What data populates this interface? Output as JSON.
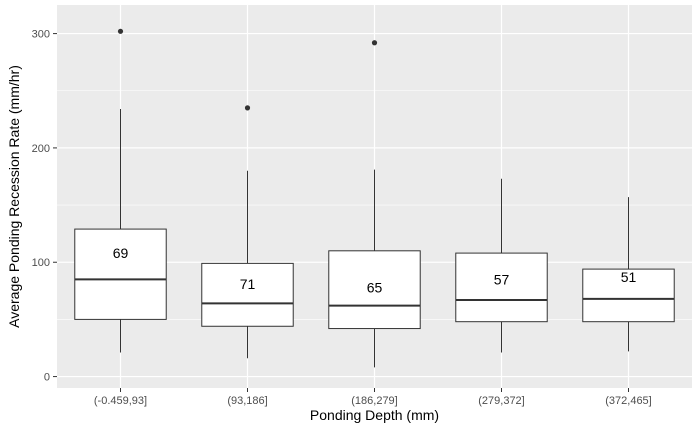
{
  "chart_data": {
    "type": "boxplot",
    "xlabel": "Ponding Depth (mm)",
    "ylabel": "Average Ponding Recession Rate (mm/hr)",
    "ylim": [
      -10,
      325
    ],
    "yticks": [
      0,
      100,
      200,
      300
    ],
    "grid": true,
    "panel_background": "#ebebeb",
    "grid_color": "#ffffff",
    "box_fill": "#ffffff",
    "box_stroke": "#333333",
    "categories": [
      "(-0.459,93]",
      "(93,186]",
      "(186,279]",
      "(279,372]",
      "(372,465]"
    ],
    "boxes": [
      {
        "category": "(-0.459,93]",
        "whisker_low": 21,
        "q1": 50,
        "median": 85,
        "q3": 129,
        "whisker_high": 234,
        "outliers": [
          302
        ],
        "count": "69"
      },
      {
        "category": "(93,186]",
        "whisker_low": 16,
        "q1": 44,
        "median": 64,
        "q3": 99,
        "whisker_high": 180,
        "outliers": [
          235
        ],
        "count": "71"
      },
      {
        "category": "(186,279]",
        "whisker_low": 8,
        "q1": 42,
        "median": 62,
        "q3": 110,
        "whisker_high": 181,
        "outliers": [
          292
        ],
        "count": "65"
      },
      {
        "category": "(279,372]",
        "whisker_low": 21,
        "q1": 48,
        "median": 67,
        "q3": 108,
        "whisker_high": 173,
        "outliers": [],
        "count": "57"
      },
      {
        "category": "(372,465]",
        "whisker_low": 22,
        "q1": 48,
        "median": 68,
        "q3": 94,
        "whisker_high": 157,
        "outliers": [],
        "count": "51"
      }
    ],
    "count_label_values": [
      108,
      81,
      78,
      85,
      87
    ]
  }
}
